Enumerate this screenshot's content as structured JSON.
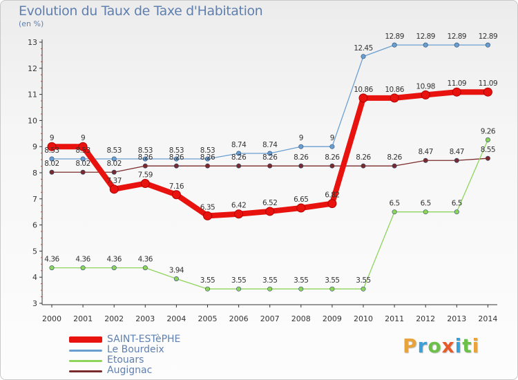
{
  "header": {
    "title": "Evolution du Taux de Taxe d'Habitation",
    "unit": "(en %)"
  },
  "brand": {
    "text": "Proxiti",
    "letter_colors": [
      "#e8a33a",
      "#3aa0d8",
      "#6cc04a",
      "#e85a2a",
      "#3aa0d8",
      "#6cc04a",
      "#e8a33a"
    ]
  },
  "chart_data": {
    "type": "line",
    "title": "Evolution du Taux de Taxe d'Habitation",
    "ylabel": "(en %)",
    "xlabel": "",
    "x": [
      "2000",
      "2001",
      "2002",
      "2003",
      "2004",
      "2005",
      "2006",
      "2007",
      "2008",
      "2009",
      "2010",
      "2011",
      "2012",
      "2013",
      "2014"
    ],
    "ylim": [
      3,
      13
    ],
    "yticks": [
      "3",
      "4",
      "5",
      "6",
      "7",
      "8",
      "9",
      "10",
      "11",
      "12",
      "13"
    ],
    "grid": false,
    "legend_position": "bottom-left",
    "series": [
      {
        "name": "SAINT-ESTèPHE",
        "color": "#e8120e",
        "values": [
          9,
          9,
          7.37,
          7.59,
          7.16,
          6.35,
          6.42,
          6.52,
          6.65,
          6.82,
          10.86,
          10.86,
          10.98,
          11.09,
          11.09
        ],
        "labels": [
          "9",
          "9",
          "7.37",
          "7.59",
          "7.16",
          "6.35",
          "6.42",
          "6.52",
          "6.65",
          "6.82",
          "10.86",
          "10.86",
          "10.98",
          "11.09",
          "11.09"
        ]
      },
      {
        "name": "Le Bourdeix",
        "color": "#6a9ed0",
        "values": [
          8.53,
          8.53,
          8.53,
          8.53,
          8.53,
          8.53,
          8.74,
          8.74,
          9,
          9,
          12.45,
          12.89,
          12.89,
          12.89,
          12.89
        ],
        "labels": [
          "8.53",
          "8.53",
          "8.53",
          "8.53",
          "8.53",
          "8.53",
          "8.74",
          "8.74",
          "9",
          "9",
          "12.45",
          "12.89",
          "12.89",
          "12.89",
          "12.89"
        ]
      },
      {
        "name": "Etouars",
        "color": "#8ed45a",
        "values": [
          4.36,
          4.36,
          4.36,
          4.36,
          3.94,
          3.55,
          3.55,
          3.55,
          3.55,
          3.55,
          3.55,
          6.5,
          6.5,
          6.5,
          9.26
        ],
        "labels": [
          "4.36",
          "4.36",
          "4.36",
          "4.36",
          "3.94",
          "3.55",
          "3.55",
          "3.55",
          "3.55",
          "3.55",
          "3.55",
          "6.5",
          "6.5",
          "6.5",
          "9.26"
        ]
      },
      {
        "name": "Augignac",
        "color": "#7a2a2a",
        "values": [
          8.02,
          8.02,
          8.02,
          8.26,
          8.26,
          8.26,
          8.26,
          8.26,
          8.26,
          8.26,
          8.26,
          8.26,
          8.47,
          8.47,
          8.55
        ],
        "labels": [
          "8.02",
          "8.02",
          "8.02",
          "8.26",
          "8.26",
          "8.26",
          "8.26",
          "8.26",
          "8.26",
          "8.26",
          "8.26",
          "8.26",
          "8.47",
          "8.47",
          "8.55"
        ]
      }
    ]
  }
}
